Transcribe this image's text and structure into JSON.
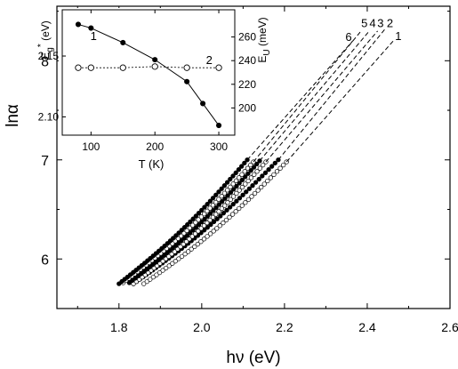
{
  "chart_data": [
    {
      "type": "scatter",
      "panel": "main",
      "xlabel": "hν (eV)",
      "ylabel": "lnα",
      "xlim": [
        1.65,
        2.6
      ],
      "ylim": [
        5.5,
        8.55
      ],
      "xticks": [
        1.8,
        2.0,
        2.2,
        2.4,
        2.6
      ],
      "xtick_labels": [
        "1.8",
        "2.0",
        "2.2",
        "2.4",
        "2.6"
      ],
      "yticks": [
        6,
        7,
        8
      ],
      "ytick_labels": [
        "6",
        "7",
        "8"
      ],
      "grid": false,
      "series": [
        {
          "name": "1",
          "marker": "open",
          "x_start": 1.86,
          "y_start": 5.75,
          "x_end": 2.205,
          "y_end": 6.98,
          "ext_x": 2.465,
          "ext_y": 8.21,
          "label_x": 2.475,
          "label_y": 8.21
        },
        {
          "name": "2",
          "marker": "filled",
          "x_start": 1.835,
          "y_start": 5.75,
          "x_end": 2.185,
          "y_end": 7.0,
          "ext_x": 2.445,
          "ext_y": 8.33,
          "label_x": 2.455,
          "label_y": 8.34
        },
        {
          "name": "3",
          "marker": "open",
          "x_start": 1.835,
          "y_start": 5.75,
          "x_end": 2.155,
          "y_end": 6.98,
          "ext_x": 2.425,
          "ext_y": 8.3,
          "label_x": 2.432,
          "label_y": 8.34
        },
        {
          "name": "4",
          "marker": "filled",
          "x_start": 1.825,
          "y_start": 5.76,
          "x_end": 2.14,
          "y_end": 6.99,
          "ext_x": 2.405,
          "ext_y": 8.3,
          "label_x": 2.413,
          "label_y": 8.34
        },
        {
          "name": "5",
          "marker": "open",
          "x_start": 1.81,
          "y_start": 5.76,
          "x_end": 2.125,
          "y_end": 6.98,
          "ext_x": 2.385,
          "ext_y": 8.3,
          "label_x": 2.393,
          "label_y": 8.34
        },
        {
          "name": "6",
          "marker": "filled",
          "x_start": 1.8,
          "y_start": 5.75,
          "x_end": 2.11,
          "y_end": 7.0,
          "ext_x": 2.365,
          "ext_y": 8.2,
          "label_x": 2.355,
          "label_y": 8.2
        }
      ]
    },
    {
      "type": "line",
      "panel": "inset",
      "xlabel": "T (K)",
      "ylabel_left": "E*g (eV)",
      "ylabel_right": "EU (meV)",
      "xlim": [
        55,
        325
      ],
      "ylim_left": [
        2.085,
        2.188
      ],
      "ylim_right": [
        177,
        283
      ],
      "xticks": [
        100,
        200,
        300
      ],
      "xtick_labels": [
        "100",
        "200",
        "300"
      ],
      "yticks_left": [
        2.1,
        2.15
      ],
      "ytick_labels_left": [
        "2.10",
        "2.15"
      ],
      "yticks_right": [
        200,
        220,
        240,
        260
      ],
      "ytick_labels_right": [
        "200",
        "220",
        "240",
        "260"
      ],
      "series": [
        {
          "name": "1",
          "marker": "filled",
          "axis": "left",
          "x": [
            80,
            100,
            150,
            200,
            250,
            275,
            300
          ],
          "y": [
            2.176,
            2.173,
            2.161,
            2.147,
            2.129,
            2.111,
            2.093
          ],
          "label_x": 104,
          "label_y": 2.163
        },
        {
          "name": "2",
          "marker": "open",
          "axis": "right",
          "x": [
            80,
            100,
            150,
            200,
            250,
            300
          ],
          "y": [
            234,
            234,
            234,
            235,
            234,
            234
          ],
          "label_x": 285,
          "label_y": 237
        }
      ]
    }
  ],
  "colors": {
    "ink": "#000000",
    "open_fill": "#ffffff",
    "background": "#ffffff"
  }
}
